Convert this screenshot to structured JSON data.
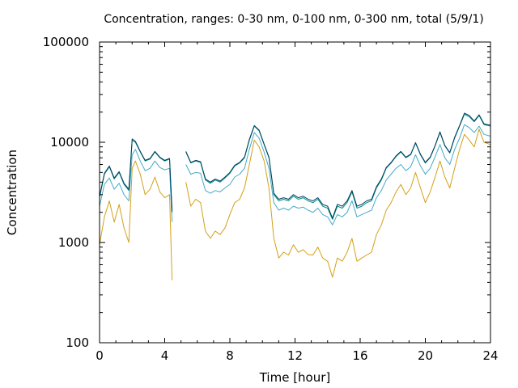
{
  "chart_data": {
    "type": "line",
    "title": "Concentration, ranges: 0-30 nm, 0-100 nm, 0-300 nm, total (5/9/1)",
    "xlabel": "Time [hour]",
    "ylabel": "Concentration",
    "xlim": [
      0,
      24
    ],
    "ylim": [
      100,
      100000
    ],
    "yscale": "log",
    "grid": false,
    "legend": "none",
    "x_ticks": [
      0,
      4,
      8,
      12,
      16,
      20,
      24
    ],
    "x_tick_labels": [
      "0",
      "4",
      "8",
      "12",
      "16",
      "20",
      "24"
    ],
    "y_ticks": [
      100,
      1000,
      10000,
      100000
    ],
    "y_tick_labels": [
      "100",
      "1000",
      "10000",
      "100000"
    ],
    "series": [
      {
        "color": "#d4a017",
        "x": [
          0.0,
          0.3,
          0.6,
          0.9,
          1.2,
          1.5,
          1.8,
          2.0,
          2.2,
          2.5,
          2.8,
          3.1,
          3.4,
          3.7,
          4.0,
          4.3,
          4.45,
          5.3,
          5.6,
          5.9,
          6.2,
          6.5,
          6.8,
          7.1,
          7.4,
          7.7,
          8.0,
          8.3,
          8.6,
          8.9,
          9.2,
          9.5,
          9.8,
          10.1,
          10.4,
          10.7,
          11.0,
          11.3,
          11.6,
          11.9,
          12.2,
          12.5,
          12.8,
          13.1,
          13.4,
          13.7,
          14.0,
          14.3,
          14.6,
          14.9,
          15.2,
          15.5,
          15.8,
          16.1,
          16.4,
          16.7,
          17.0,
          17.3,
          17.6,
          17.9,
          18.2,
          18.5,
          18.8,
          19.1,
          19.4,
          19.7,
          20.0,
          20.3,
          20.6,
          20.9,
          21.2,
          21.5,
          21.8,
          22.1,
          22.4,
          22.7,
          23.0,
          23.3,
          23.6,
          24.0
        ],
        "y": [
          950,
          1800,
          2600,
          1600,
          2400,
          1400,
          1000,
          5500,
          6500,
          4800,
          3000,
          3400,
          4500,
          3200,
          2800,
          3000,
          420,
          4000,
          2300,
          2700,
          2500,
          1300,
          1100,
          1300,
          1200,
          1400,
          1900,
          2500,
          2700,
          3500,
          6000,
          10500,
          9000,
          6500,
          3500,
          1100,
          700,
          800,
          750,
          950,
          800,
          850,
          760,
          750,
          900,
          700,
          650,
          450,
          700,
          650,
          800,
          1100,
          650,
          700,
          750,
          800,
          1200,
          1500,
          2100,
          2500,
          3200,
          3800,
          3000,
          3500,
          5000,
          3500,
          2500,
          3200,
          4500,
          6500,
          4500,
          3500,
          5500,
          8500,
          12000,
          10500,
          9000,
          13500,
          10000,
          9500
        ]
      },
      {
        "color": "#45a9c9",
        "x": [
          0.0,
          0.3,
          0.6,
          0.9,
          1.2,
          1.5,
          1.8,
          2.0,
          2.2,
          2.5,
          2.8,
          3.1,
          3.4,
          3.7,
          4.0,
          4.3,
          4.45,
          5.3,
          5.6,
          5.9,
          6.2,
          6.5,
          6.8,
          7.1,
          7.4,
          7.7,
          8.0,
          8.3,
          8.6,
          8.9,
          9.2,
          9.5,
          9.8,
          10.1,
          10.4,
          10.7,
          11.0,
          11.3,
          11.6,
          11.9,
          12.2,
          12.5,
          12.8,
          13.1,
          13.4,
          13.7,
          14.0,
          14.3,
          14.6,
          14.9,
          15.2,
          15.5,
          15.8,
          16.1,
          16.4,
          16.7,
          17.0,
          17.3,
          17.6,
          17.9,
          18.2,
          18.5,
          18.8,
          19.1,
          19.4,
          19.7,
          20.0,
          20.3,
          20.6,
          20.9,
          21.2,
          21.5,
          21.8,
          22.1,
          22.4,
          22.7,
          23.0,
          23.3,
          23.6,
          24.0
        ],
        "y": [
          2300,
          3800,
          4400,
          3400,
          3900,
          3000,
          2600,
          7500,
          8500,
          6500,
          5200,
          5500,
          6500,
          5600,
          5300,
          5500,
          1600,
          6000,
          4800,
          5000,
          4900,
          3300,
          3100,
          3300,
          3200,
          3500,
          3800,
          4500,
          4800,
          5500,
          8500,
          12500,
          11000,
          8000,
          5500,
          2500,
          2100,
          2200,
          2100,
          2300,
          2200,
          2250,
          2100,
          2000,
          2200,
          1900,
          1800,
          1500,
          1900,
          1800,
          2000,
          2600,
          1800,
          1900,
          2000,
          2100,
          2800,
          3300,
          4200,
          4800,
          5500,
          6000,
          5200,
          5700,
          7500,
          5800,
          4800,
          5500,
          7200,
          9500,
          7000,
          6000,
          8500,
          11000,
          15000,
          14000,
          12500,
          14500,
          12000,
          11500
        ]
      },
      {
        "color": "#008b8b",
        "x": [
          0.0,
          0.3,
          0.6,
          0.9,
          1.2,
          1.5,
          1.8,
          2.0,
          2.2,
          2.5,
          2.8,
          3.1,
          3.4,
          3.7,
          4.0,
          4.3,
          4.45,
          5.3,
          5.6,
          5.9,
          6.2,
          6.5,
          6.8,
          7.1,
          7.4,
          7.7,
          8.0,
          8.3,
          8.6,
          8.9,
          9.2,
          9.5,
          9.8,
          10.1,
          10.4,
          10.7,
          11.0,
          11.3,
          11.6,
          11.9,
          12.2,
          12.5,
          12.8,
          13.1,
          13.4,
          13.7,
          14.0,
          14.3,
          14.6,
          14.9,
          15.2,
          15.5,
          15.8,
          16.1,
          16.4,
          16.7,
          17.0,
          17.3,
          17.6,
          17.9,
          18.2,
          18.5,
          18.8,
          19.1,
          19.4,
          19.7,
          20.0,
          20.3,
          20.6,
          20.9,
          21.2,
          21.5,
          21.8,
          22.1,
          22.4,
          22.7,
          23.0,
          23.3,
          23.6,
          24.0
        ],
        "y": [
          2800,
          4800,
          5700,
          4300,
          5000,
          3800,
          3300,
          10500,
          10000,
          8000,
          6500,
          6800,
          8000,
          7000,
          6500,
          6800,
          2000,
          8000,
          6200,
          6500,
          6300,
          4200,
          3900,
          4200,
          4000,
          4400,
          4900,
          5800,
          6200,
          7000,
          10500,
          14500,
          13000,
          9500,
          7000,
          3000,
          2600,
          2700,
          2600,
          2900,
          2700,
          2800,
          2600,
          2500,
          2700,
          2300,
          2200,
          1700,
          2300,
          2200,
          2500,
          3200,
          2200,
          2300,
          2500,
          2600,
          3500,
          4200,
          5500,
          6200,
          7200,
          8000,
          7000,
          7500,
          9800,
          7500,
          6200,
          7000,
          9200,
          12500,
          9200,
          7800,
          11000,
          14500,
          19000,
          18000,
          16000,
          18500,
          15000,
          14500
        ]
      },
      {
        "color": "#003f5c",
        "x": [
          0.0,
          0.3,
          0.6,
          0.9,
          1.2,
          1.5,
          1.8,
          2.0,
          2.2,
          2.5,
          2.8,
          3.1,
          3.4,
          3.7,
          4.0,
          4.3,
          4.45,
          5.3,
          5.6,
          5.9,
          6.2,
          6.5,
          6.8,
          7.1,
          7.4,
          7.7,
          8.0,
          8.3,
          8.6,
          8.9,
          9.2,
          9.5,
          9.8,
          10.1,
          10.4,
          10.7,
          11.0,
          11.3,
          11.6,
          11.9,
          12.2,
          12.5,
          12.8,
          13.1,
          13.4,
          13.7,
          14.0,
          14.3,
          14.6,
          14.9,
          15.2,
          15.5,
          15.8,
          16.1,
          16.4,
          16.7,
          17.0,
          17.3,
          17.6,
          17.9,
          18.2,
          18.5,
          18.8,
          19.1,
          19.4,
          19.7,
          20.0,
          20.3,
          20.6,
          20.9,
          21.2,
          21.5,
          21.8,
          22.1,
          22.4,
          22.7,
          23.0,
          23.3,
          23.6,
          24.0
        ],
        "y": [
          2900,
          4900,
          5800,
          4400,
          5100,
          3900,
          3400,
          10800,
          10200,
          8100,
          6600,
          6900,
          8100,
          7100,
          6600,
          6900,
          2050,
          8100,
          6300,
          6600,
          6400,
          4300,
          4000,
          4300,
          4100,
          4500,
          5000,
          5900,
          6300,
          7100,
          10700,
          14700,
          13200,
          9600,
          7100,
          3100,
          2700,
          2800,
          2700,
          3000,
          2800,
          2900,
          2700,
          2600,
          2800,
          2400,
          2300,
          1750,
          2400,
          2300,
          2600,
          3300,
          2300,
          2400,
          2600,
          2700,
          3600,
          4300,
          5600,
          6300,
          7300,
          8100,
          7100,
          7600,
          9900,
          7600,
          6300,
          7100,
          9300,
          12700,
          9300,
          7900,
          11200,
          14700,
          19500,
          18500,
          16300,
          18800,
          15300,
          14800
        ]
      }
    ]
  }
}
